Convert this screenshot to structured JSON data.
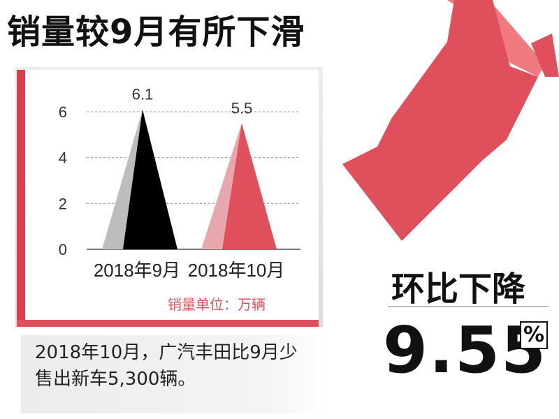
{
  "header": {
    "title": "销量较9月有所下滑"
  },
  "chart_data": {
    "type": "bar",
    "categories": [
      "2018年9月",
      "2018年10月"
    ],
    "values": [
      6.1,
      5.5
    ],
    "data_labels": [
      "6.1",
      "5.5"
    ],
    "yticks": [
      "0",
      "2",
      "4",
      "6"
    ],
    "ylim": [
      0,
      6.1
    ],
    "grid": true,
    "unit_label": "销量单位：万辆",
    "colors": {
      "sep_front": "#000000",
      "sep_back": "#bdbdbd",
      "oct_front": "#e0505c",
      "oct_back": "#e8a7ad"
    }
  },
  "footnote": "2018年10月，广汽丰田比9月少售出新车5,300辆。",
  "summary": {
    "label": "环比下降",
    "value": "9.55",
    "percent_sign": "%"
  },
  "colors": {
    "accent_red": "#e0505c",
    "arrow_light": "#f07a80"
  }
}
